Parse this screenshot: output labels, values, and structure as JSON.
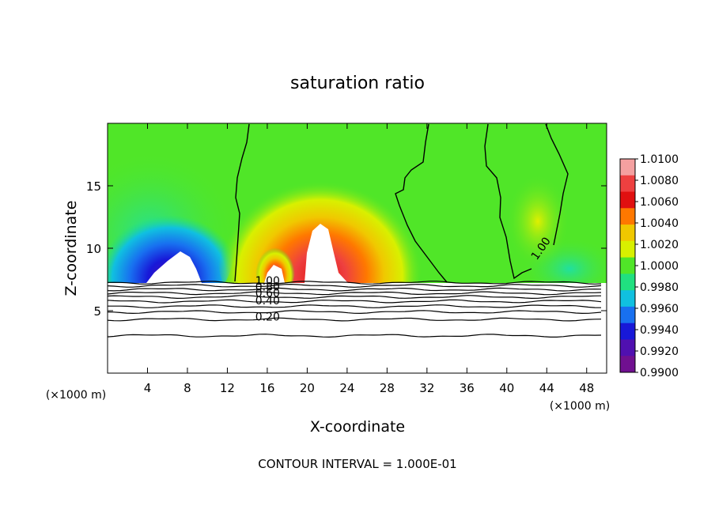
{
  "chart_data": {
    "type": "heatmap",
    "title": "saturation ratio",
    "xlabel": "X-coordinate",
    "ylabel": "Z-coordinate",
    "x_unit": "(×1000 m)",
    "xlim": [
      0,
      50
    ],
    "ylim": [
      0,
      20
    ],
    "xticks": [
      4,
      8,
      12,
      16,
      20,
      24,
      28,
      32,
      36,
      40,
      44,
      48
    ],
    "yticks": [
      5,
      10,
      15
    ],
    "footer": "CONTOUR INTERVAL = 1.000E-01",
    "colorbar": {
      "levels": [
        "1.0100",
        "1.0080",
        "1.0060",
        "1.0040",
        "1.0020",
        "1.0000",
        "0.9980",
        "0.9960",
        "0.9940",
        "0.9920",
        "0.9900"
      ],
      "colors": [
        "#f4a0a0",
        "#ee4040",
        "#e01010",
        "#ff7800",
        "#f0c800",
        "#d8f000",
        "#50e628",
        "#20e080",
        "#10c0e0",
        "#1870f0",
        "#1818d8",
        "#5010b0",
        "#701090"
      ]
    },
    "contour_labels": [
      {
        "text": "1.00",
        "x": 14.8,
        "z": 7.1
      },
      {
        "text": "0.80",
        "x": 14.8,
        "z": 6.6
      },
      {
        "text": "0.60",
        "x": 14.8,
        "z": 6.1
      },
      {
        "text": "0.40",
        "x": 14.8,
        "z": 5.5
      },
      {
        "text": "0.20",
        "x": 14.8,
        "z": 4.2
      },
      {
        "text": "1.00",
        "x": 43.0,
        "z": 9.0
      }
    ],
    "contour_levels_lower": [
      {
        "level": 1.0,
        "z": 7.25
      },
      {
        "level": 0.9,
        "z": 7.0
      },
      {
        "level": 0.8,
        "z": 6.7
      },
      {
        "level": 0.7,
        "z": 6.4
      },
      {
        "level": 0.6,
        "z": 6.1
      },
      {
        "level": 0.5,
        "z": 5.75
      },
      {
        "level": 0.4,
        "z": 5.35
      },
      {
        "level": 0.3,
        "z": 4.9
      },
      {
        "level": 0.2,
        "z": 4.3
      },
      {
        "level": 0.1,
        "z": 3.0
      }
    ]
  }
}
